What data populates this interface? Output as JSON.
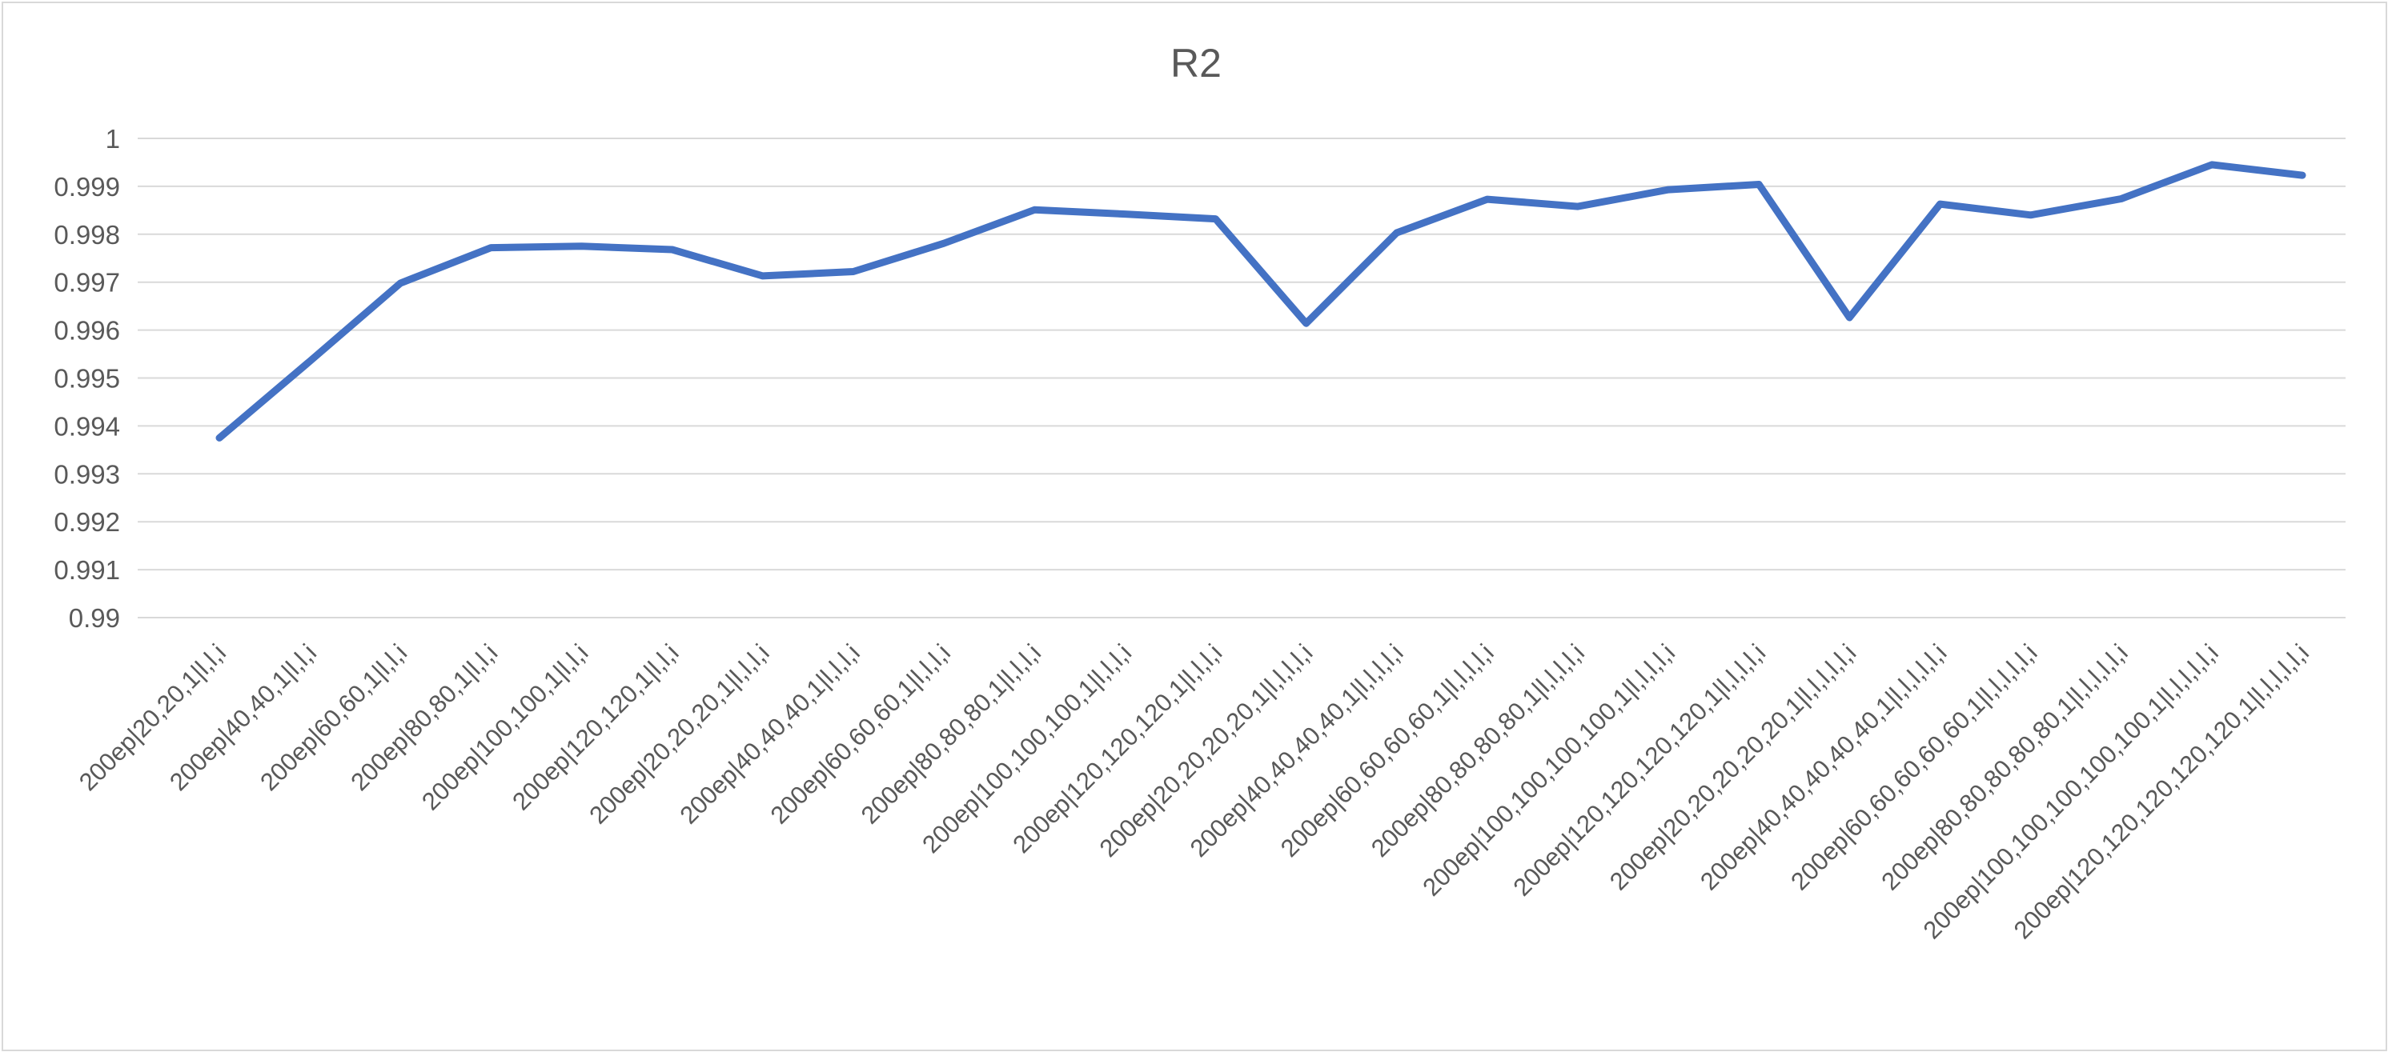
{
  "chart_data": {
    "type": "line",
    "title": "R2",
    "ylim": [
      0.99,
      1.0
    ],
    "y_ticks": [
      "0.99",
      "0.991",
      "0.992",
      "0.993",
      "0.994",
      "0.995",
      "0.996",
      "0.997",
      "0.998",
      "0.999",
      "1"
    ],
    "grid": true,
    "legend": "none",
    "series_color": "#4472c4",
    "categories": [
      "200ep|20,20,1|l,l,i",
      "200ep|40,40,1|l,l,i",
      "200ep|60,60,1|l,l,i",
      "200ep|80,80,1|l,l,i",
      "200ep|100,100,1|l,l,i",
      "200ep|120,120,1|l,l,i",
      "200ep|20,20,20,1|l,l,l,i",
      "200ep|40,40,40,1|l,l,l,i",
      "200ep|60,60,60,1|l,l,l,i",
      "200ep|80,80,80,1|l,l,l,i",
      "200ep|100,100,100,1|l,l,l,i",
      "200ep|120,120,120,1|l,l,l,i",
      "200ep|20,20,20,20,1|l,l,l,l,i",
      "200ep|40,40,40,40,1|l,l,l,l,i",
      "200ep|60,60,60,60,1|l,l,l,l,i",
      "200ep|80,80,80,80,1|l,l,l,l,i",
      "200ep|100,100,100,100,1|l,l,l,l,i",
      "200ep|120,120,120,120,1|l,l,l,l,i",
      "200ep|20,20,20,20,20,1|l,l,l,l,l,i",
      "200ep|40,40,40,40,40,1|l,l,l,l,l,i",
      "200ep|60,60,60,60,60,1|l,l,l,l,l,i",
      "200ep|80,80,80,80,80,1|l,l,l,l,l,i",
      "200ep|100,100,100,100,100,1|l,l,l,l,l,i",
      "200ep|120,120,120,120,120,1|l,l,l,l,l,i"
    ],
    "series": [
      {
        "values": [
          0.99375,
          0.99535,
          0.99698,
          0.99772,
          0.99775,
          0.99768,
          0.99713,
          0.99722,
          0.99781,
          0.99851,
          0.99842,
          0.99832,
          0.99614,
          0.99803,
          0.99873,
          0.99858,
          0.99893,
          0.99904,
          0.99626,
          0.99863,
          0.9984,
          0.99874,
          0.99945,
          0.99923
        ]
      }
    ]
  }
}
